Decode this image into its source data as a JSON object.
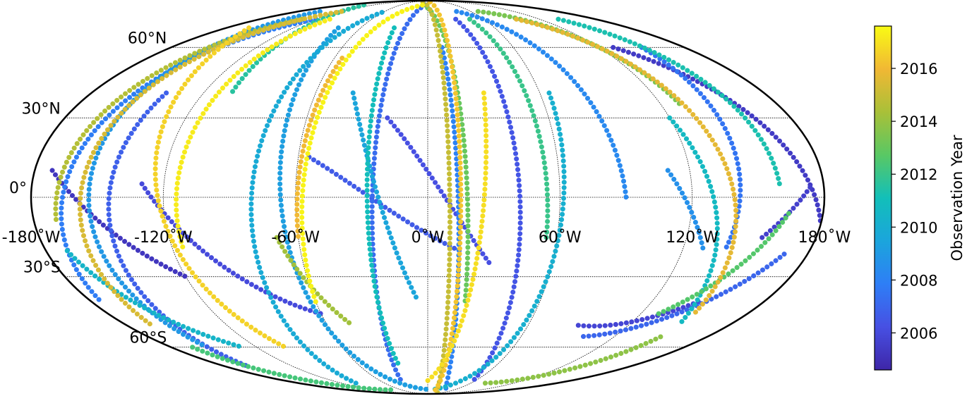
{
  "map": {
    "projection": "mollweide",
    "lat_labels": [
      {
        "lat": 60,
        "text": "60°N"
      },
      {
        "lat": 30,
        "text": "30°N"
      },
      {
        "lat": 0,
        "text": "0°"
      },
      {
        "lat": -30,
        "text": "30°S"
      },
      {
        "lat": -60,
        "text": "60°S"
      }
    ],
    "lon_labels": [
      {
        "lon": -180,
        "text": "-180˚W"
      },
      {
        "lon": -120,
        "text": "-120˚W"
      },
      {
        "lon": -60,
        "text": "-60˚W"
      },
      {
        "lon": 0,
        "text": "0˚W"
      },
      {
        "lon": 60,
        "text": "60˚W"
      },
      {
        "lon": 120,
        "text": "120˚W"
      },
      {
        "lon": 180,
        "text": "180˚W"
      }
    ],
    "meridians": [
      -120,
      -60,
      0,
      60,
      120
    ],
    "parallels": [
      -60,
      -30,
      0,
      30,
      60
    ],
    "grid": "dotted"
  },
  "colorbar": {
    "label": "Observation Year",
    "ticks": [
      "2006",
      "2008",
      "2010",
      "2012",
      "2014",
      "2016"
    ],
    "range": [
      2004.6,
      2017.6
    ],
    "colormap": [
      "#3e26a8",
      "#4750e3",
      "#2e7ef6",
      "#1ba5dc",
      "#12bfb9",
      "#59c864",
      "#a9c038",
      "#f1b834",
      "#f9fb14"
    ]
  },
  "tracks": [
    {
      "year": 2005.2,
      "lon0": -172,
      "lat0": 10,
      "lon1": -120,
      "lat1": -30
    },
    {
      "year": 2005.4,
      "lon0": 130,
      "lat0": 60,
      "lon1": 180,
      "lat1": -10
    },
    {
      "year": 2005.6,
      "lon0": 155,
      "lat0": -15,
      "lon1": 175,
      "lat1": 5
    },
    {
      "year": 2005.8,
      "lon0": 90,
      "lat0": -50,
      "lon1": 145,
      "lat1": -40
    },
    {
      "year": 2006.0,
      "lon0": -130,
      "lat0": 5,
      "lon1": -60,
      "lat1": -45
    },
    {
      "year": 2006.2,
      "lon0": -20,
      "lat0": 30,
      "lon1": 30,
      "lat1": -25
    },
    {
      "year": 2006.4,
      "lon0": 30,
      "lat0": 75,
      "lon1": 60,
      "lat1": -80
    },
    {
      "year": 2006.6,
      "lon0": -55,
      "lat0": 15,
      "lon1": 15,
      "lat1": -20
    },
    {
      "year": 2006.8,
      "lon0": -140,
      "lat0": 40,
      "lon1": -160,
      "lat1": -70
    },
    {
      "year": 2007.0,
      "lon0": 100,
      "lat0": -55,
      "lon1": 170,
      "lat1": -20
    },
    {
      "year": 2007.2,
      "lon0": -5,
      "lat0": 85,
      "lon1": -35,
      "lat1": -80
    },
    {
      "year": 2007.5,
      "lon0": 150,
      "lat0": 60,
      "lon1": 140,
      "lat1": -20
    },
    {
      "year": 2007.8,
      "lon0": -120,
      "lat0": 75,
      "lon1": -175,
      "lat1": -40
    },
    {
      "year": 2008.0,
      "lon0": 10,
      "lat0": 60,
      "lon1": 40,
      "lat1": -85
    },
    {
      "year": 2008.3,
      "lon0": 40,
      "lat0": 80,
      "lon1": 90,
      "lat1": 0
    },
    {
      "year": 2008.6,
      "lon0": 110,
      "lat0": 10,
      "lon1": 130,
      "lat1": -20
    },
    {
      "year": 2008.9,
      "lon0": -150,
      "lat0": 80,
      "lon1": -155,
      "lat1": -60
    },
    {
      "year": 2009.2,
      "lon0": -80,
      "lat0": 70,
      "lon1": 5,
      "lat1": -85
    },
    {
      "year": 2009.5,
      "lon0": -40,
      "lat0": 40,
      "lon1": -5,
      "lat1": -40
    },
    {
      "year": 2009.8,
      "lon0": -100,
      "lat0": -80,
      "lon1": -60,
      "lat1": 80
    },
    {
      "year": 2010.1,
      "lon0": 65,
      "lat0": 40,
      "lon1": 10,
      "lat1": -85
    },
    {
      "year": 2010.4,
      "lon0": -170,
      "lat0": -20,
      "lon1": -130,
      "lat1": -60
    },
    {
      "year": 2010.7,
      "lon0": 120,
      "lat0": 30,
      "lon1": 150,
      "lat1": -50
    },
    {
      "year": 2011.0,
      "lon0": -30,
      "lat0": 70,
      "lon1": -25,
      "lat1": -70
    },
    {
      "year": 2011.3,
      "lon0": 140,
      "lat0": 75,
      "lon1": 160,
      "lat1": 5
    },
    {
      "year": 2011.6,
      "lon0": -140,
      "lat0": 85,
      "lon1": -105,
      "lat1": 40
    },
    {
      "year": 2012.0,
      "lon0": 45,
      "lat0": 75,
      "lon1": 55,
      "lat1": -15
    },
    {
      "year": 2012.3,
      "lon0": -165,
      "lat0": -60,
      "lon1": -70,
      "lat1": -85
    },
    {
      "year": 2012.6,
      "lon0": 130,
      "lat0": -45,
      "lon1": 165,
      "lat1": -5
    },
    {
      "year": 2013.0,
      "lon0": -10,
      "lat0": 85,
      "lon1": 20,
      "lat1": -40
    },
    {
      "year": 2013.4,
      "lon0": 70,
      "lat0": 80,
      "lon1": 130,
      "lat1": 35
    },
    {
      "year": 2013.8,
      "lon0": 80,
      "lat0": -80,
      "lon1": 150,
      "lat1": -55
    },
    {
      "year": 2014.2,
      "lon0": -70,
      "lat0": -15,
      "lon1": -45,
      "lat1": -50
    },
    {
      "year": 2014.6,
      "lon0": -135,
      "lat0": 75,
      "lon1": -170,
      "lat1": -10
    },
    {
      "year": 2015.0,
      "lon0": -20,
      "lat0": 88,
      "lon1": 40,
      "lat1": -88
    },
    {
      "year": 2015.4,
      "lon0": -120,
      "lat0": 80,
      "lon1": -165,
      "lat1": -50
    },
    {
      "year": 2015.7,
      "lon0": 95,
      "lat0": 75,
      "lon1": 150,
      "lat1": -45
    },
    {
      "year": 2016.0,
      "lon0": -55,
      "lat0": 55,
      "lon1": -60,
      "lat1": -15
    },
    {
      "year": 2016.3,
      "lon0": 10,
      "lat0": 88,
      "lon1": 20,
      "lat1": -88
    },
    {
      "year": 2016.6,
      "lon0": -160,
      "lat0": 70,
      "lon1": -100,
      "lat1": -60
    },
    {
      "year": 2016.9,
      "lon0": 30,
      "lat0": 40,
      "lon1": -5,
      "lat1": -80
    },
    {
      "year": 2017.2,
      "lon0": -105,
      "lat0": 75,
      "lon1": -115,
      "lat1": -20
    },
    {
      "year": 2017.4,
      "lon0": -60,
      "lat0": -40,
      "lon1": -10,
      "lat1": 85
    }
  ]
}
